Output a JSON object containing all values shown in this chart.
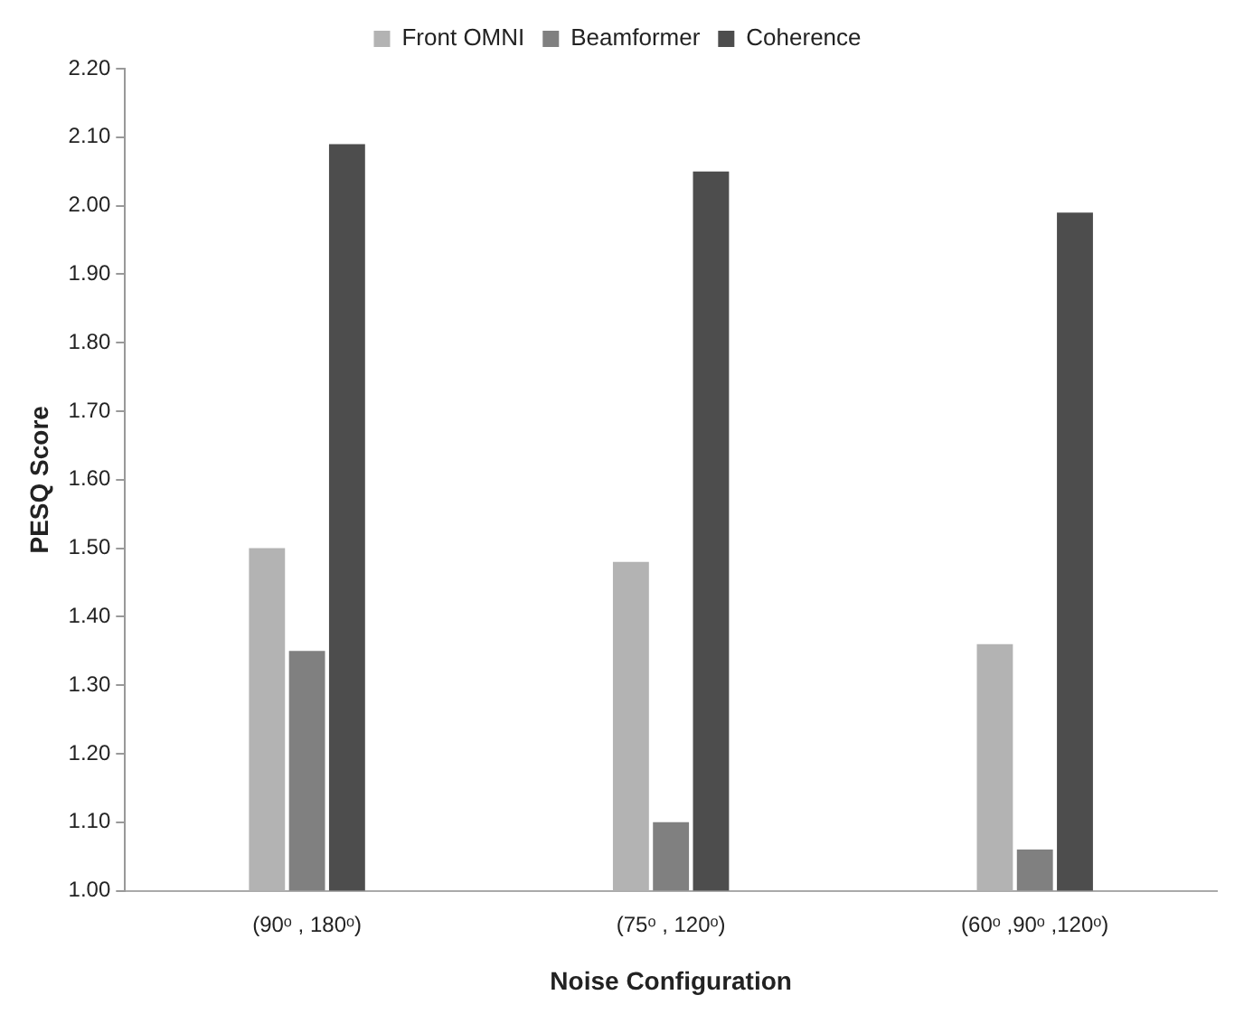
{
  "chart_data": {
    "type": "bar",
    "xlabel": "Noise Configuration",
    "ylabel": "PESQ Score",
    "categories": [
      "(90ᵒ , 180ᵒ)",
      "(75ᵒ , 120ᵒ)",
      "(60ᵒ ,90ᵒ ,120ᵒ)"
    ],
    "series": [
      {
        "name": "Front OMNI",
        "color": "#b3b3b3",
        "values": [
          1.5,
          1.48,
          1.36
        ]
      },
      {
        "name": "Beamformer",
        "color": "#808080",
        "values": [
          1.35,
          1.1,
          1.06
        ]
      },
      {
        "name": "Coherence",
        "color": "#4d4d4d",
        "values": [
          2.09,
          2.05,
          1.99
        ]
      }
    ],
    "ylim": [
      1.0,
      2.2
    ],
    "yticks": [
      {
        "value": 1.0,
        "label": "1.00"
      },
      {
        "value": 1.1,
        "label": "1.10"
      },
      {
        "value": 1.2,
        "label": "1.20"
      },
      {
        "value": 1.3,
        "label": "1.30"
      },
      {
        "value": 1.4,
        "label": "1.40"
      },
      {
        "value": 1.5,
        "label": "1.50"
      },
      {
        "value": 1.6,
        "label": "1.60"
      },
      {
        "value": 1.7,
        "label": "1.70"
      },
      {
        "value": 1.8,
        "label": "1.80"
      },
      {
        "value": 1.9,
        "label": "1.90"
      },
      {
        "value": 2.0,
        "label": "2.00"
      },
      {
        "value": 2.1,
        "label": "2.10"
      },
      {
        "value": 2.2,
        "label": "2.20"
      }
    ],
    "grid": false,
    "legend": "top"
  }
}
